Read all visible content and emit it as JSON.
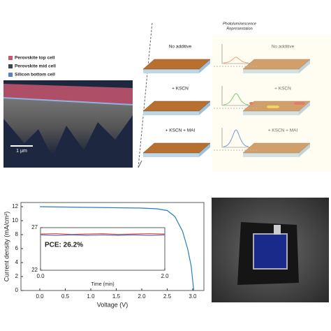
{
  "sem": {
    "legend": [
      "Perovskite top cell",
      "Perovskite mid cell",
      "Silicon bottom cell"
    ],
    "scale_bar": "1 μm"
  },
  "schematic": {
    "pl_title": [
      "Photoluminescence",
      "Representation"
    ],
    "left_labels": [
      "No additive",
      "+ KSCN",
      "+ KSCN + MAI"
    ],
    "right_labels": [
      "No additive",
      "+ KSCN",
      "+ KSCN + MAI"
    ]
  },
  "chart_data": [
    {
      "type": "line",
      "xlabel": "Voltage (V)",
      "ylabel": "Current density (mA/cm²)",
      "color": "#2a7db8",
      "x": [
        0,
        0.5,
        1.0,
        1.5,
        2.0,
        2.3,
        2.5,
        2.65,
        2.8,
        2.9,
        2.97,
        3.02
      ],
      "values": [
        12,
        11.95,
        11.9,
        11.85,
        11.8,
        11.7,
        11.45,
        10.6,
        8.5,
        6,
        3.5,
        0
      ],
      "xlim": [
        -0.37,
        3.22
      ],
      "ylim": [
        0,
        12.6
      ],
      "xticks": [
        {
          "value": 0,
          "label": "0.0"
        },
        {
          "value": 0.5,
          "label": "0.5"
        },
        {
          "value": 1,
          "label": "1.0"
        },
        {
          "value": 1.5,
          "label": "1.5"
        },
        {
          "value": 2,
          "label": "2.0"
        },
        {
          "value": 2.5,
          "label": "2.5"
        },
        {
          "value": 3,
          "label": "3.0"
        }
      ],
      "yticks": [
        0,
        2,
        4,
        6,
        8,
        10,
        12
      ]
    },
    {
      "type": "line",
      "xlabel": "Time (min)",
      "annotation": "PCE: 26.2%",
      "x": [
        0,
        0.25,
        0.5,
        0.75,
        1.0,
        1.25,
        1.5,
        1.75,
        2.0
      ],
      "series": [
        {
          "color": "#d9534f",
          "values": [
            26.25,
            26.3,
            26.2,
            26.25,
            26.3,
            26.2,
            26.25,
            26.3,
            26.25
          ]
        },
        {
          "color": "#5b6fc4",
          "values": [
            26.15,
            26.1,
            26.15,
            26.1,
            26.15,
            26.1,
            26.15,
            26.1,
            26.15
          ]
        }
      ],
      "xlim": [
        0,
        2
      ],
      "ylim": [
        22,
        27
      ],
      "xticks": [
        {
          "value": 0,
          "label": "0.0"
        },
        {
          "value": 2,
          "label": "2.0"
        }
      ],
      "yticks": [
        22,
        27
      ]
    }
  ]
}
